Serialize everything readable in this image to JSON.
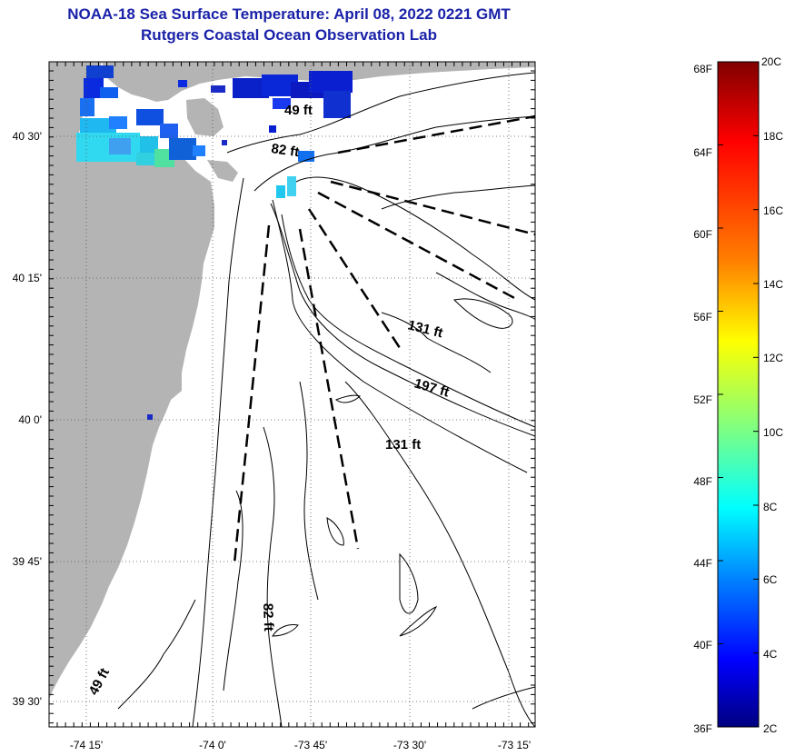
{
  "header": {
    "title_line1": "NOAA-18 Sea Surface Temperature:  April 08, 2022 0221 GMT",
    "title_line2": "Rutgers Coastal Ocean Observation Lab"
  },
  "map": {
    "lat_ticks": [
      "40 30'",
      "40 15'",
      "40 0'",
      "39 45'",
      "39 30'"
    ],
    "lon_ticks": [
      "-74 15'",
      "-74 0'",
      "-73 45'",
      "-73 30'",
      "-73 15'"
    ],
    "contour_labels": [
      "49 ft",
      "82 ft",
      "131 ft",
      "197 ft",
      "131 ft",
      "82 ft",
      "49 ft"
    ],
    "colors": {
      "land": "#b4b4b4",
      "cloud_free_water": "#ffffff",
      "grid": "#555555"
    }
  },
  "colorbar": {
    "fahrenheit_labels": [
      "68F",
      "64F",
      "60F",
      "56F",
      "52F",
      "48F",
      "44F",
      "40F",
      "36F"
    ],
    "celsius_labels": [
      "20C",
      "18C",
      "16C",
      "14C",
      "12C",
      "10C",
      "8C",
      "6C",
      "4C",
      "2C"
    ],
    "colormap": [
      "#800000",
      "#ff0000",
      "#ff8000",
      "#ffff00",
      "#80ff80",
      "#00ffff",
      "#0080ff",
      "#0000ff",
      "#000080"
    ]
  }
}
